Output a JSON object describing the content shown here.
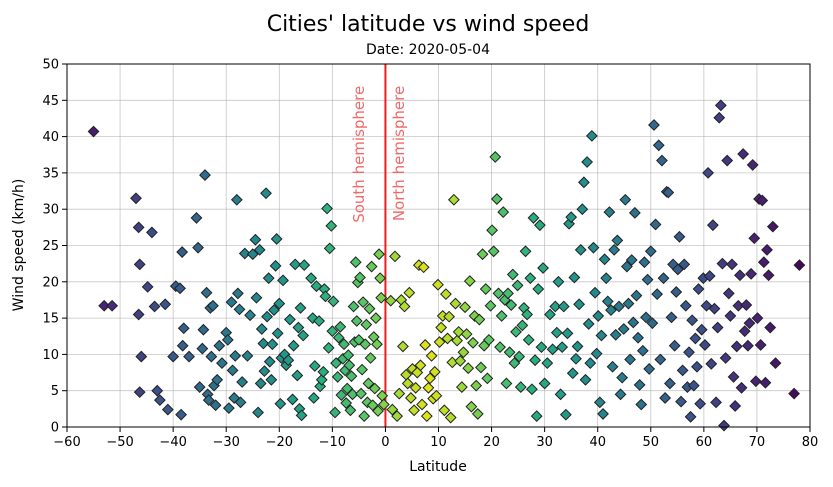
{
  "chart_data": {
    "type": "scatter",
    "title": "Cities' latitude vs wind speed",
    "subtitle": "Date: 2020-05-04",
    "xlabel": "Latitude",
    "ylabel": "Wind speed (km/h)",
    "xlim": [
      -60,
      80
    ],
    "ylim": [
      0,
      50
    ],
    "xticks": [
      -60,
      -50,
      -40,
      -30,
      -20,
      -10,
      0,
      10,
      20,
      30,
      40,
      50,
      60,
      70,
      80
    ],
    "yticks": [
      0,
      5,
      10,
      15,
      20,
      25,
      30,
      35,
      40,
      45,
      50
    ],
    "grid": true,
    "marker": "diamond",
    "colormap": "viridis",
    "equator_line": {
      "x": 0,
      "color": "#ee1c1c"
    },
    "annotations": [
      {
        "text": "South hemisphere",
        "x": -4,
        "y": 47,
        "color": "#f06a6a"
      },
      {
        "text": "North hemisphere",
        "x": 3.5,
        "y": 47,
        "color": "#f06a6a"
      }
    ],
    "points": [
      [
        -55,
        40.7
      ],
      [
        -53,
        16.7
      ],
      [
        -51.5,
        16.7
      ],
      [
        -47,
        31.5
      ],
      [
        -46.5,
        27.5
      ],
      [
        -46.3,
        22.4
      ],
      [
        -46.5,
        15.5
      ],
      [
        -46,
        9.7
      ],
      [
        -46.3,
        4.8
      ],
      [
        -44.8,
        19.3
      ],
      [
        -44,
        26.8
      ],
      [
        -43.5,
        16.6
      ],
      [
        -43,
        5
      ],
      [
        -42.5,
        3.7
      ],
      [
        -41.5,
        16.9
      ],
      [
        -41,
        2.4
      ],
      [
        -40,
        9.7
      ],
      [
        -39.5,
        19.4
      ],
      [
        -38.7,
        19.1
      ],
      [
        -38.3,
        24.1
      ],
      [
        -38,
        13.6
      ],
      [
        -38.2,
        11.2
      ],
      [
        -38.5,
        1.7
      ],
      [
        -37,
        9.7
      ],
      [
        -35.6,
        28.8
      ],
      [
        -35.3,
        24.7
      ],
      [
        -35,
        5.5
      ],
      [
        -34.5,
        10.8
      ],
      [
        -34.3,
        13.4
      ],
      [
        -34,
        34.7
      ],
      [
        -33.7,
        18.5
      ],
      [
        -33.5,
        4.5
      ],
      [
        -33.3,
        3.7
      ],
      [
        -33,
        16.4
      ],
      [
        -32.8,
        9.7
      ],
      [
        -32.5,
        16.7
      ],
      [
        -32.3,
        5.7
      ],
      [
        -32,
        3
      ],
      [
        -31.7,
        6.5
      ],
      [
        -31.3,
        11.2
      ],
      [
        -30.8,
        8.8
      ],
      [
        -30,
        13
      ],
      [
        -29.7,
        12
      ],
      [
        -29.5,
        2.6
      ],
      [
        -29,
        17.2
      ],
      [
        -28.8,
        7.8
      ],
      [
        -28.5,
        4
      ],
      [
        -28.3,
        9.8
      ],
      [
        -28,
        31.3
      ],
      [
        -27.8,
        18.4
      ],
      [
        -27.5,
        16.2
      ],
      [
        -27.3,
        3.4
      ],
      [
        -27,
        6.2
      ],
      [
        -26.5,
        23.9
      ],
      [
        -26,
        9.8
      ],
      [
        -25.5,
        15.4
      ],
      [
        -25,
        23.8
      ],
      [
        -24.5,
        25.8
      ],
      [
        -24.3,
        17.8
      ],
      [
        -24,
        2
      ],
      [
        -23.7,
        24.4
      ],
      [
        -23.5,
        6
      ],
      [
        -23.3,
        13.5
      ],
      [
        -23,
        11.5
      ],
      [
        -22.8,
        7.7
      ],
      [
        -22.5,
        32.2
      ],
      [
        -22.3,
        15.2
      ],
      [
        -22,
        20.5
      ],
      [
        -21.8,
        9
      ],
      [
        -21.5,
        6.5
      ],
      [
        -21.3,
        11.4
      ],
      [
        -21,
        16.1
      ],
      [
        -20.7,
        22.2
      ],
      [
        -20.5,
        25.9
      ],
      [
        -20.3,
        12.9
      ],
      [
        -20,
        17
      ],
      [
        -19.8,
        3.2
      ],
      [
        -19.6,
        9.5
      ],
      [
        -19.3,
        20.2
      ],
      [
        -19,
        10
      ],
      [
        -18.7,
        8.5
      ],
      [
        -18.3,
        9.2
      ],
      [
        -18,
        14.8
      ],
      [
        -17.5,
        3.8
      ],
      [
        -17.3,
        11.2
      ],
      [
        -17,
        22.4
      ],
      [
        -16.6,
        7.1
      ],
      [
        -16.4,
        13.7
      ],
      [
        -16.2,
        2.5
      ],
      [
        -16,
        16.4
      ],
      [
        -15.8,
        1.6
      ],
      [
        -15.5,
        12.6
      ],
      [
        -15.3,
        22.3
      ],
      [
        -14,
        20.5
      ],
      [
        -13.7,
        15
      ],
      [
        -13.5,
        4
      ],
      [
        -13.3,
        8.4
      ],
      [
        -13,
        19.4
      ],
      [
        -12.5,
        14.6
      ],
      [
        -12.3,
        5.6
      ],
      [
        -12,
        6.5
      ],
      [
        -11.7,
        7.6
      ],
      [
        -11.5,
        19
      ],
      [
        -11.3,
        18
      ],
      [
        -11,
        30.1
      ],
      [
        -10.7,
        10.9
      ],
      [
        -10.5,
        24.6
      ],
      [
        -10.2,
        27.7
      ],
      [
        -10,
        13.2
      ],
      [
        -9.8,
        17.3
      ],
      [
        -9.5,
        2
      ],
      [
        -9.3,
        8.8
      ],
      [
        -9,
        6.9
      ],
      [
        -8.8,
        12.3
      ],
      [
        -8.5,
        13.8
      ],
      [
        -8.3,
        4.4
      ],
      [
        -8,
        9.4
      ],
      [
        -7.8,
        11.4
      ],
      [
        -7.6,
        7.8
      ],
      [
        -7.4,
        3.3
      ],
      [
        -7.2,
        5.3
      ],
      [
        -7,
        9.9
      ],
      [
        -6.8,
        8.5
      ],
      [
        -6.6,
        2.3
      ],
      [
        -6.4,
        7
      ],
      [
        -6.2,
        4.5
      ],
      [
        -6,
        16.6
      ],
      [
        -5.8,
        11.7
      ],
      [
        -5.6,
        22.7
      ],
      [
        -5.4,
        14.6
      ],
      [
        -5.2,
        19.9
      ],
      [
        -5,
        12
      ],
      [
        -4.8,
        20.6
      ],
      [
        -4.6,
        4.6
      ],
      [
        -4.4,
        7.9
      ],
      [
        -4.2,
        17.2
      ],
      [
        -4,
        1.5
      ],
      [
        -3.8,
        11.4
      ],
      [
        -3.6,
        14.1
      ],
      [
        -3.4,
        3.4
      ],
      [
        -3.2,
        6
      ],
      [
        -3,
        16.3
      ],
      [
        -2.8,
        9.5
      ],
      [
        -2.6,
        22.1
      ],
      [
        -2.4,
        3
      ],
      [
        -2.2,
        12.4
      ],
      [
        -2,
        5.3
      ],
      [
        -1.8,
        15
      ],
      [
        -1.6,
        11.4
      ],
      [
        -1.4,
        2.2
      ],
      [
        -1.2,
        23.8
      ],
      [
        -1,
        20.5
      ],
      [
        -0.8,
        17.8
      ],
      [
        -0.6,
        4.3
      ],
      [
        -0.3,
        3.1
      ],
      [
        1,
        17.4
      ],
      [
        1.3,
        2.4
      ],
      [
        1.8,
        23.5
      ],
      [
        2.2,
        1.5
      ],
      [
        2.6,
        4.6
      ],
      [
        3,
        17.5
      ],
      [
        3.3,
        11.1
      ],
      [
        3.6,
        16.6
      ],
      [
        3.9,
        7.2
      ],
      [
        4.2,
        6
      ],
      [
        4.5,
        18.5
      ],
      [
        4.8,
        4
      ],
      [
        5.1,
        8
      ],
      [
        5.4,
        2.3
      ],
      [
        5.7,
        5.4
      ],
      [
        6,
        7.5
      ],
      [
        6.3,
        22.3
      ],
      [
        6.6,
        8.5
      ],
      [
        6.9,
        3.1
      ],
      [
        7.2,
        22
      ],
      [
        7.5,
        11.3
      ],
      [
        7.8,
        1.5
      ],
      [
        8.1,
        5.4
      ],
      [
        8.4,
        6.7
      ],
      [
        8.7,
        9.8
      ],
      [
        9,
        3.9
      ],
      [
        9.3,
        7.6
      ],
      [
        9.6,
        4.3
      ],
      [
        9.9,
        19.6
      ],
      [
        10.2,
        11.7
      ],
      [
        10.5,
        13.7
      ],
      [
        10.8,
        15.3
      ],
      [
        11.1,
        2.3
      ],
      [
        11.4,
        18.3
      ],
      [
        11.7,
        12.2
      ],
      [
        12,
        15.2
      ],
      [
        12.3,
        1.3
      ],
      [
        12.6,
        8.9
      ],
      [
        12.9,
        31.3
      ],
      [
        13.2,
        17
      ],
      [
        13.5,
        11.9
      ],
      [
        13.8,
        13.1
      ],
      [
        14.1,
        9.1
      ],
      [
        14.4,
        5.5
      ],
      [
        14.7,
        10.3
      ],
      [
        15,
        16.5
      ],
      [
        15.3,
        12.8
      ],
      [
        15.6,
        8.1
      ],
      [
        15.9,
        20.1
      ],
      [
        16.2,
        2.8
      ],
      [
        16.5,
        11.6
      ],
      [
        16.8,
        15.3
      ],
      [
        17.1,
        5.7
      ],
      [
        17.4,
        1.8
      ],
      [
        17.7,
        14.8
      ],
      [
        18,
        8.2
      ],
      [
        18.3,
        23.8
      ],
      [
        18.6,
        11.2
      ],
      [
        18.9,
        19
      ],
      [
        19.2,
        6.7
      ],
      [
        19.5,
        12
      ],
      [
        19.8,
        16.7
      ],
      [
        20.1,
        27.1
      ],
      [
        20.4,
        24.2
      ],
      [
        20.7,
        37.2
      ],
      [
        21,
        31.4
      ],
      [
        21.3,
        18.4
      ],
      [
        21.6,
        11
      ],
      [
        21.9,
        15.3
      ],
      [
        22.2,
        29.6
      ],
      [
        22.5,
        17.5
      ],
      [
        22.8,
        6
      ],
      [
        23.1,
        18.4
      ],
      [
        23.4,
        10.3
      ],
      [
        23.7,
        16.8
      ],
      [
        24,
        21
      ],
      [
        24.3,
        8.8
      ],
      [
        24.6,
        13.1
      ],
      [
        24.9,
        19.5
      ],
      [
        25.2,
        9.7
      ],
      [
        25.5,
        5.5
      ],
      [
        25.8,
        14
      ],
      [
        26.1,
        16.4
      ],
      [
        26.4,
        24.2
      ],
      [
        26.7,
        15.5
      ],
      [
        27,
        12
      ],
      [
        27.3,
        20.5
      ],
      [
        27.6,
        5.2
      ],
      [
        27.9,
        28.8
      ],
      [
        28.2,
        9.2
      ],
      [
        28.5,
        1.5
      ],
      [
        28.8,
        19
      ],
      [
        29.1,
        27.8
      ],
      [
        29.4,
        11
      ],
      [
        29.7,
        21.9
      ],
      [
        30,
        6
      ],
      [
        30.5,
        8.8
      ],
      [
        31,
        15.5
      ],
      [
        31.5,
        10.7
      ],
      [
        32,
        16.6
      ],
      [
        32.3,
        13
      ],
      [
        32.6,
        20
      ],
      [
        33,
        4.5
      ],
      [
        33.3,
        11
      ],
      [
        33.6,
        16.6
      ],
      [
        34,
        1.7
      ],
      [
        34.3,
        12.9
      ],
      [
        34.6,
        28
      ],
      [
        35,
        28.9
      ],
      [
        35.3,
        7.4
      ],
      [
        35.6,
        20.6
      ],
      [
        35.9,
        9.4
      ],
      [
        36.2,
        11.1
      ],
      [
        36.5,
        16.9
      ],
      [
        36.8,
        24.4
      ],
      [
        37.1,
        30
      ],
      [
        37.4,
        33.7
      ],
      [
        37.7,
        6.5
      ],
      [
        38,
        36.5
      ],
      [
        38.3,
        14.2
      ],
      [
        38.6,
        8.8
      ],
      [
        38.9,
        40.1
      ],
      [
        39.2,
        24.7
      ],
      [
        39.5,
        18.5
      ],
      [
        39.8,
        10.1
      ],
      [
        40.1,
        15.3
      ],
      [
        40.4,
        3.4
      ],
      [
        40.7,
        12.6
      ],
      [
        41,
        1.8
      ],
      [
        41.3,
        23.1
      ],
      [
        41.6,
        20.5
      ],
      [
        41.9,
        17.3
      ],
      [
        42.2,
        29.6
      ],
      [
        42.5,
        16.1
      ],
      [
        42.8,
        8.3
      ],
      [
        43.1,
        24.4
      ],
      [
        43.4,
        12.7
      ],
      [
        43.7,
        25.7
      ],
      [
        44,
        16.6
      ],
      [
        44.3,
        4.5
      ],
      [
        44.6,
        6.8
      ],
      [
        44.9,
        13.5
      ],
      [
        45.2,
        31.3
      ],
      [
        45.5,
        22.1
      ],
      [
        45.8,
        17
      ],
      [
        46.1,
        9.3
      ],
      [
        46.4,
        23
      ],
      [
        46.7,
        14.4
      ],
      [
        47,
        29.5
      ],
      [
        47.3,
        18.1
      ],
      [
        47.6,
        12.3
      ],
      [
        47.9,
        5.8
      ],
      [
        48.2,
        3.1
      ],
      [
        48.5,
        10.5
      ],
      [
        48.8,
        22.7
      ],
      [
        49.1,
        15.1
      ],
      [
        49.4,
        20.3
      ],
      [
        49.7,
        8
      ],
      [
        50,
        24.2
      ],
      [
        50.3,
        14.3
      ],
      [
        50.6,
        41.6
      ],
      [
        50.9,
        27.9
      ],
      [
        51.2,
        18.3
      ],
      [
        51.5,
        38.8
      ],
      [
        51.8,
        9.3
      ],
      [
        52.1,
        36.7
      ],
      [
        52.4,
        20.5
      ],
      [
        52.7,
        4
      ],
      [
        53,
        32.4
      ],
      [
        53.3,
        32.3
      ],
      [
        53.6,
        6
      ],
      [
        53.9,
        15.1
      ],
      [
        54.2,
        22.4
      ],
      [
        54.5,
        11.2
      ],
      [
        54.8,
        18.6
      ],
      [
        55.1,
        21.7
      ],
      [
        55.4,
        26.2
      ],
      [
        55.7,
        3.5
      ],
      [
        56,
        7.8
      ],
      [
        56.3,
        22.4
      ],
      [
        56.6,
        16.7
      ],
      [
        56.9,
        5.5
      ],
      [
        57.2,
        10.3
      ],
      [
        57.5,
        1.4
      ],
      [
        57.8,
        14.7
      ],
      [
        58.1,
        5.7
      ],
      [
        58.4,
        12.2
      ],
      [
        58.7,
        8.3
      ],
      [
        59,
        19
      ],
      [
        59.3,
        3.2
      ],
      [
        59.6,
        13.4
      ],
      [
        59.9,
        20.5
      ],
      [
        60.2,
        11.3
      ],
      [
        60.5,
        16.7
      ],
      [
        60.8,
        35
      ],
      [
        61.1,
        20.8
      ],
      [
        61.4,
        8.7
      ],
      [
        61.7,
        27.8
      ],
      [
        62,
        16.3
      ],
      [
        62.3,
        3.4
      ],
      [
        62.6,
        13.7
      ],
      [
        62.9,
        42.6
      ],
      [
        63.2,
        44.3
      ],
      [
        63.5,
        22.5
      ],
      [
        63.8,
        0.2
      ],
      [
        64.1,
        9.5
      ],
      [
        64.4,
        36.7
      ],
      [
        64.7,
        18.4
      ],
      [
        65,
        15.3
      ],
      [
        65.3,
        22.4
      ],
      [
        65.6,
        6.9
      ],
      [
        65.9,
        2.9
      ],
      [
        66.2,
        11.1
      ],
      [
        66.5,
        16.7
      ],
      [
        66.8,
        20.9
      ],
      [
        67.1,
        5.4
      ],
      [
        67.4,
        37.6
      ],
      [
        67.7,
        13.2
      ],
      [
        68,
        16.8
      ],
      [
        68.3,
        11.2
      ],
      [
        68.6,
        14.3
      ],
      [
        68.9,
        21.1
      ],
      [
        69.2,
        36.1
      ],
      [
        69.5,
        26
      ],
      [
        69.8,
        6.3
      ],
      [
        70.1,
        15
      ],
      [
        70.4,
        31.4
      ],
      [
        70.7,
        11.3
      ],
      [
        71,
        31.2
      ],
      [
        71.3,
        22.7
      ],
      [
        71.6,
        6.1
      ],
      [
        71.9,
        24.4
      ],
      [
        72.2,
        20.9
      ],
      [
        72.5,
        13.7
      ],
      [
        73,
        27.6
      ],
      [
        73.5,
        8.8
      ],
      [
        77,
        4.6
      ],
      [
        78,
        22.3
      ]
    ]
  }
}
